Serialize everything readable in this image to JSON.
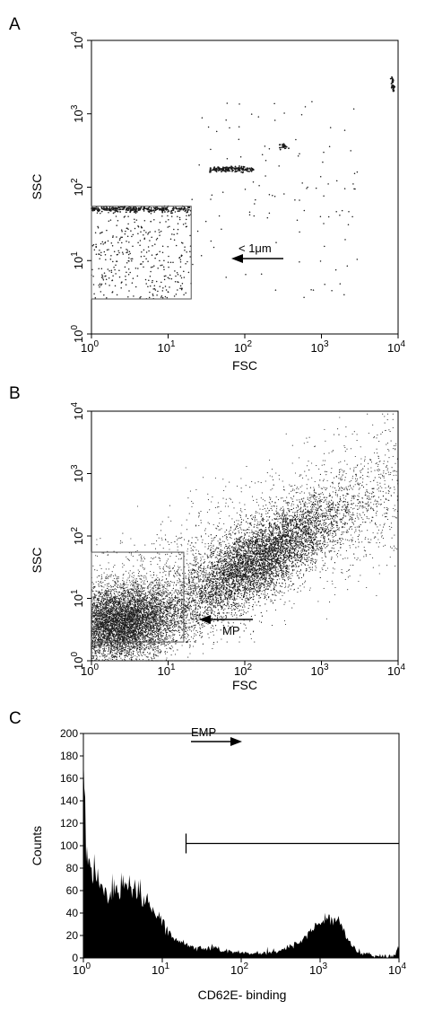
{
  "chart_data": [
    {
      "panel": "A",
      "type": "scatter",
      "xlabel": "FSC",
      "ylabel": "SSC",
      "x_scale": "log",
      "y_scale": "log",
      "xlim": [
        1,
        10000
      ],
      "ylim": [
        1,
        10000
      ],
      "x_ticks": [
        {
          "value": 1,
          "base": "10",
          "exp": "0"
        },
        {
          "value": 10,
          "base": "10",
          "exp": "1"
        },
        {
          "value": 100,
          "base": "10",
          "exp": "2"
        },
        {
          "value": 1000,
          "base": "10",
          "exp": "3"
        },
        {
          "value": 10000,
          "base": "10",
          "exp": "4"
        }
      ],
      "y_ticks": [
        {
          "value": 1,
          "base": "10",
          "exp": "0"
        },
        {
          "value": 10,
          "base": "10",
          "exp": "1"
        },
        {
          "value": 100,
          "base": "10",
          "exp": "2"
        },
        {
          "value": 1000,
          "base": "10",
          "exp": "3"
        },
        {
          "value": 10000,
          "base": "10",
          "exp": "4"
        }
      ],
      "gate": {
        "x": [
          1,
          20
        ],
        "y": [
          3,
          55
        ]
      },
      "annotation": {
        "text": "< 1μm",
        "arrow_tip": [
          22,
          10
        ],
        "arrow_tail": [
          230,
          10
        ]
      },
      "populations": [
        {
          "kind": "band",
          "x": [
            1,
            20
          ],
          "y": 50,
          "n": 260
        },
        {
          "kind": "band",
          "x": [
            35,
            130
          ],
          "y": 175,
          "n": 160
        },
        {
          "kind": "band",
          "x": [
            280,
            380
          ],
          "y": 360,
          "n": 25
        },
        {
          "kind": "vband",
          "x": 8500,
          "y": [
            2000,
            3200
          ],
          "n": 40
        },
        {
          "kind": "cloud",
          "x": [
            1,
            20
          ],
          "y": [
            3,
            55
          ],
          "n": 380
        },
        {
          "kind": "cloud",
          "x": [
            20,
            3000
          ],
          "y": [
            3,
            1500
          ],
          "n": 110
        }
      ]
    },
    {
      "panel": "B",
      "type": "scatter",
      "xlabel": "FSC",
      "ylabel": "SSC",
      "x_scale": "log",
      "y_scale": "log",
      "xlim": [
        1,
        10000
      ],
      "ylim": [
        1,
        10000
      ],
      "x_ticks": [
        {
          "value": 1,
          "base": "10",
          "exp": "0"
        },
        {
          "value": 10,
          "base": "10",
          "exp": "1"
        },
        {
          "value": 100,
          "base": "10",
          "exp": "2"
        },
        {
          "value": 1000,
          "base": "10",
          "exp": "3"
        },
        {
          "value": 10000,
          "base": "10",
          "exp": "4"
        }
      ],
      "y_ticks": [
        {
          "value": 1,
          "base": "10",
          "exp": "0"
        },
        {
          "value": 10,
          "base": "10",
          "exp": "1"
        },
        {
          "value": 100,
          "base": "10",
          "exp": "2"
        },
        {
          "value": 1000,
          "base": "10",
          "exp": "3"
        },
        {
          "value": 10000,
          "base": "10",
          "exp": "4"
        }
      ],
      "gate": {
        "x": [
          1,
          16
        ],
        "y": [
          2,
          55
        ]
      },
      "annotation": {
        "text": "MP",
        "arrow_tip": [
          22,
          3
        ],
        "arrow_tail": [
          100,
          3
        ]
      },
      "populations": [
        {
          "kind": "blob",
          "center": [
            2.4,
            4.0
          ],
          "spread": [
            0.38,
            0.3
          ],
          "tilt": 0.15,
          "n": 7000
        },
        {
          "kind": "blob",
          "center": [
            150,
            40
          ],
          "spread": [
            0.55,
            0.3
          ],
          "tilt": 0.7,
          "n": 9000
        },
        {
          "kind": "scatter",
          "x": [
            1,
            10000
          ],
          "y": [
            2,
            9000
          ],
          "n": 2500
        }
      ]
    },
    {
      "panel": "C",
      "type": "histogram",
      "xlabel": "CD62E- binding",
      "ylabel": "Counts",
      "x_scale": "log",
      "xlim": [
        1,
        10000
      ],
      "ylim": [
        0,
        200
      ],
      "x_ticks": [
        {
          "value": 1,
          "base": "10",
          "exp": "0"
        },
        {
          "value": 10,
          "base": "10",
          "exp": "1"
        },
        {
          "value": 100,
          "base": "10",
          "exp": "2"
        },
        {
          "value": 1000,
          "base": "10",
          "exp": "3"
        },
        {
          "value": 10000,
          "base": "10",
          "exp": "4"
        }
      ],
      "y_ticks": [
        "0",
        "20",
        "40",
        "60",
        "80",
        "100",
        "120",
        "140",
        "160",
        "180",
        "200"
      ],
      "gate": {
        "label": "EMP",
        "x": [
          20,
          10000
        ],
        "y": 102
      },
      "profile": [
        [
          1.0,
          150
        ],
        [
          1.05,
          105
        ],
        [
          1.15,
          85
        ],
        [
          1.3,
          78
        ],
        [
          1.6,
          68
        ],
        [
          2.0,
          60
        ],
        [
          3.0,
          60
        ],
        [
          4.0,
          62
        ],
        [
          5.0,
          57
        ],
        [
          7.0,
          48
        ],
        [
          10,
          32
        ],
        [
          13,
          20
        ],
        [
          17,
          14
        ],
        [
          25,
          10
        ],
        [
          35,
          8
        ],
        [
          45,
          11
        ],
        [
          55,
          7
        ],
        [
          80,
          5
        ],
        [
          150,
          4
        ],
        [
          300,
          6
        ],
        [
          500,
          12
        ],
        [
          800,
          25
        ],
        [
          1100,
          33
        ],
        [
          1400,
          35
        ],
        [
          1700,
          33
        ],
        [
          2200,
          18
        ],
        [
          3000,
          5
        ],
        [
          5000,
          2
        ],
        [
          8000,
          1
        ],
        [
          9500,
          8
        ],
        [
          10000,
          6
        ]
      ]
    }
  ],
  "panels": {
    "a": {
      "letter": "A",
      "xlabel": "FSC",
      "ylabel": "SSC",
      "annotation": "< 1μm"
    },
    "b": {
      "letter": "B",
      "xlabel": "FSC",
      "ylabel": "SSC",
      "annotation": "MP"
    },
    "c": {
      "letter": "C",
      "xlabel": "CD62E- binding",
      "ylabel": "Counts",
      "annotation": "EMP"
    }
  },
  "tick_base": "10",
  "tick_exponents": [
    "0",
    "1",
    "2",
    "3",
    "4"
  ],
  "count_ticks": [
    "0",
    "20",
    "40",
    "60",
    "80",
    "100",
    "120",
    "140",
    "160",
    "180",
    "200"
  ],
  "colors": {
    "ink": "#000000",
    "dots": "#1a1a1a",
    "gate": "#555555",
    "background": "#ffffff"
  }
}
